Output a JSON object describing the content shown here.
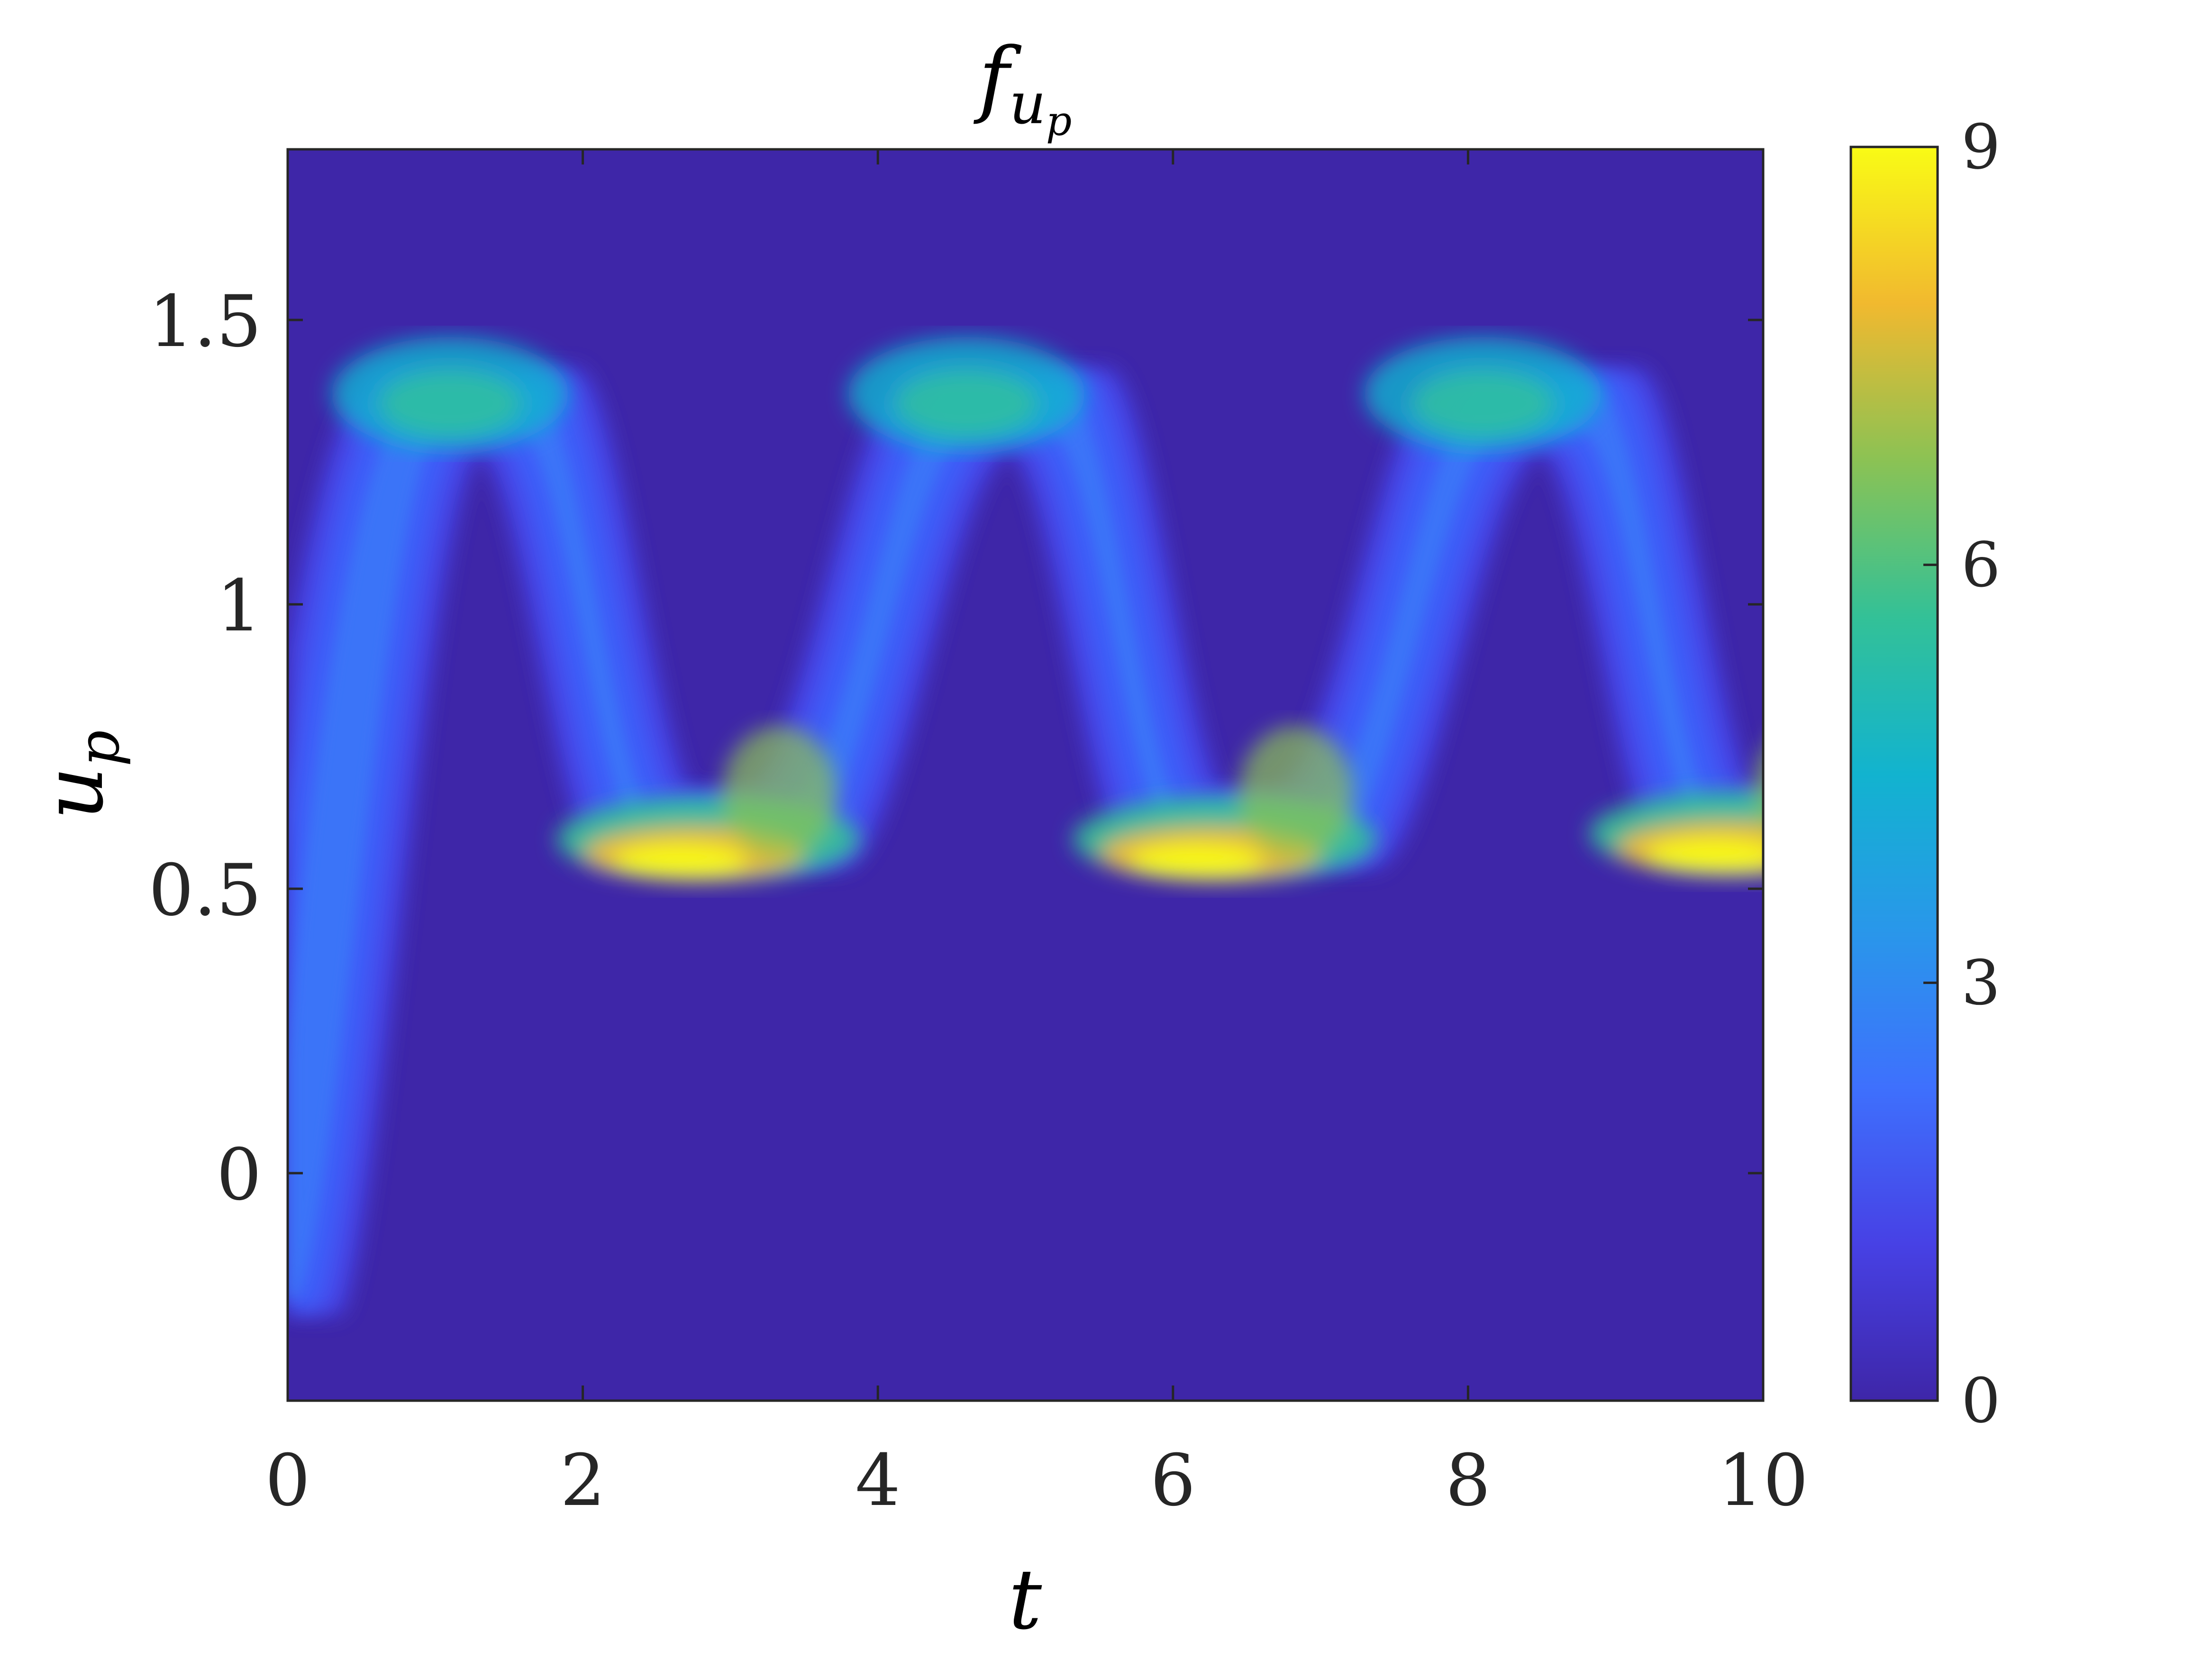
{
  "chart_data": {
    "type": "heatmap",
    "title": {
      "base": "f",
      "sub1": "u",
      "sub2": "p"
    },
    "xlabel": "t",
    "ylabel": {
      "base": "u",
      "sub": "p"
    },
    "xlim": [
      0,
      10
    ],
    "ylim": [
      -0.4,
      1.8
    ],
    "xticks": [
      0,
      2,
      4,
      6,
      8,
      10
    ],
    "xtick_labels": [
      "0",
      "2",
      "4",
      "6",
      "8",
      "10"
    ],
    "yticks": [
      0,
      0.5,
      1,
      1.5
    ],
    "ytick_labels": [
      "0",
      "0.5",
      "1",
      "1.5"
    ],
    "colorbar": {
      "min": 0,
      "max": 9,
      "ticks": [
        0,
        3,
        6,
        9
      ],
      "tick_labels": [
        "0",
        "3",
        "6",
        "9"
      ],
      "colormap": "parula"
    },
    "grid": false,
    "background_color": "#3e26a8",
    "density_band": {
      "period": 3.6,
      "lower_plateau": 0.535,
      "upper_plateau": 1.415,
      "upper_band_width": 0.14,
      "description_points": [
        {
          "t": 0.0,
          "u": -0.2
        },
        {
          "t": 0.8,
          "u": 1.4
        },
        {
          "t": 1.5,
          "u": 1.415
        },
        {
          "t": 2.4,
          "u": 0.535
        },
        {
          "t": 3.3,
          "u": 0.535
        },
        {
          "t": 4.3,
          "u": 1.415
        },
        {
          "t": 5.0,
          "u": 1.415
        },
        {
          "t": 5.9,
          "u": 0.535
        },
        {
          "t": 6.9,
          "u": 0.535
        },
        {
          "t": 7.8,
          "u": 1.415
        },
        {
          "t": 8.6,
          "u": 1.415
        },
        {
          "t": 9.4,
          "u": 0.535
        },
        {
          "t": 10.0,
          "u": 0.535
        }
      ],
      "hotspots": [
        {
          "t": 2.85,
          "u": 0.57,
          "value": 9
        },
        {
          "t": 6.35,
          "u": 0.57,
          "value": 9
        },
        {
          "t": 9.85,
          "u": 0.58,
          "value": 8.5
        },
        {
          "t": 1.1,
          "u": 1.32,
          "value": 5
        },
        {
          "t": 4.6,
          "u": 1.32,
          "value": 5
        },
        {
          "t": 8.1,
          "u": 1.32,
          "value": 5
        }
      ]
    }
  }
}
